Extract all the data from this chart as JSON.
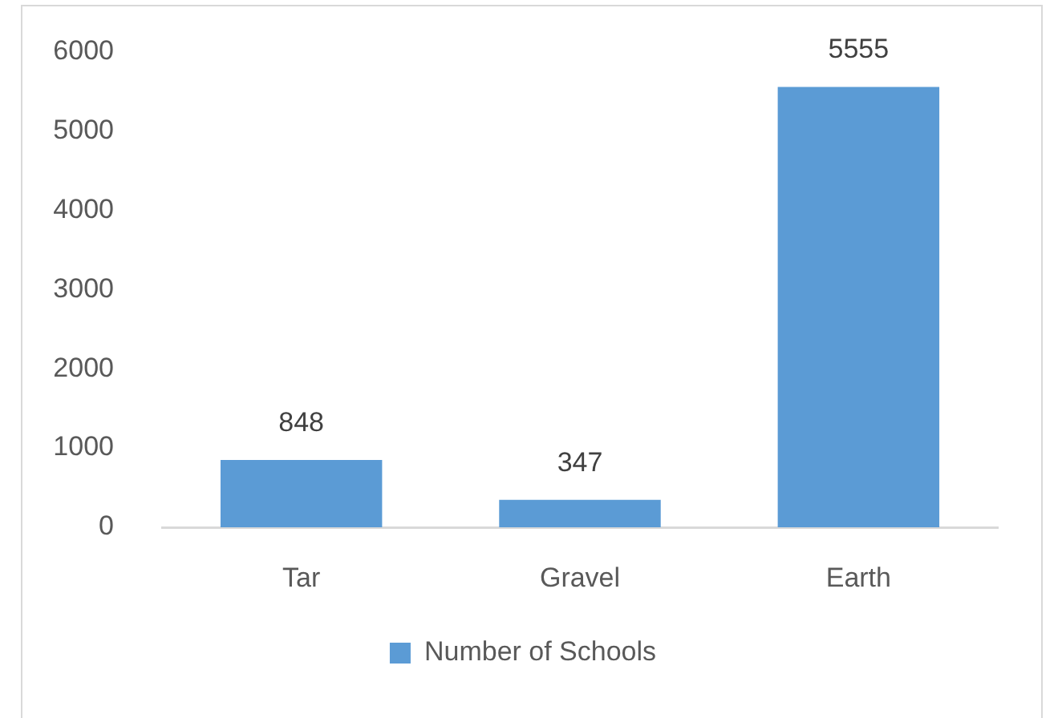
{
  "chart_data": {
    "type": "bar",
    "categories": [
      "Tar",
      "Gravel",
      "Earth"
    ],
    "series": [
      {
        "name": "Number of Schools",
        "color": "#5b9bd5",
        "values": [
          848,
          347,
          5555
        ]
      }
    ],
    "ylim": [
      0,
      6000
    ],
    "yticks": [
      0,
      1000,
      2000,
      3000,
      4000,
      5000,
      6000
    ],
    "grid": false,
    "legend": "bottom",
    "data_labels": true
  }
}
